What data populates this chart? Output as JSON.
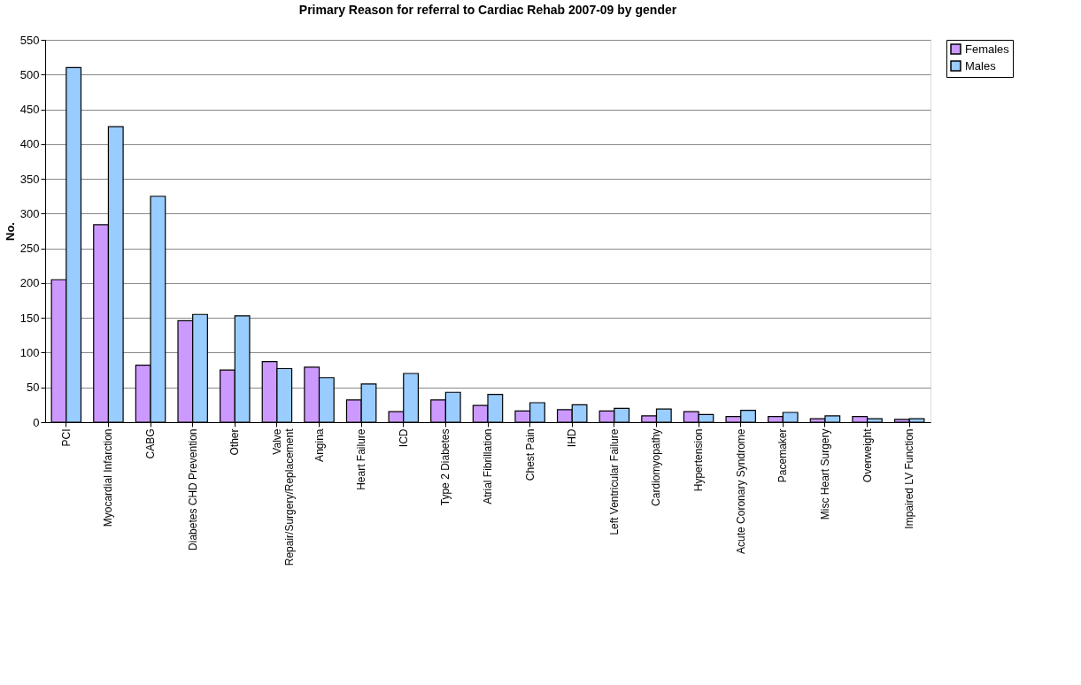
{
  "chart_data": {
    "type": "bar",
    "title": "Primary Reason for referral to Cardiac Rehab 2007-09 by gender",
    "ylabel": "No.",
    "categories": [
      "PCI",
      "Myocardial Infarction",
      "CABG",
      "Diabetes CHD Prevention",
      "Other",
      "Valve Repair/Surgery/Replacement",
      "Angina",
      "Heart Failure",
      "ICD",
      "Type 2 Diabetes",
      "Atrial Fibrillation",
      "Chest Pain",
      "IHD",
      "Left Ventricular Failure",
      "Cardiomyopathy",
      "Hypertension",
      "Acute Coronary Syndrome",
      "Pacemaker",
      "Misc Heart Surgery",
      "Overweight",
      "Impaired LV Function"
    ],
    "series": [
      {
        "name": "Females",
        "color": "#cc99ff",
        "values": [
          205,
          284,
          82,
          146,
          75,
          87,
          79,
          32,
          15,
          32,
          24,
          16,
          18,
          16,
          9,
          15,
          8,
          8,
          5,
          8,
          4
        ]
      },
      {
        "name": "Males",
        "color": "#99ccff",
        "values": [
          510,
          425,
          325,
          155,
          153,
          77,
          64,
          55,
          70,
          43,
          40,
          28,
          25,
          20,
          19,
          11,
          17,
          14,
          9,
          5,
          5
        ]
      }
    ],
    "ylim": [
      0,
      550
    ],
    "yticks": [
      0,
      50,
      100,
      150,
      200,
      250,
      300,
      350,
      400,
      450,
      500,
      550
    ],
    "grid": "y",
    "legend": "right"
  }
}
